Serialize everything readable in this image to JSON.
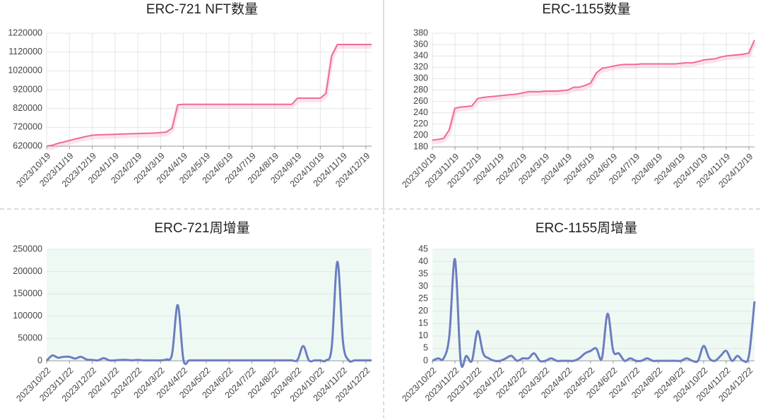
{
  "chart_data": [
    {
      "type": "line",
      "title": "ERC-721 NFT数量",
      "categories": [
        "2023/10/19",
        null,
        null,
        null,
        "2023/11/19",
        null,
        null,
        null,
        "2023/12/19",
        null,
        null,
        null,
        "2024/1/19",
        null,
        null,
        null,
        "2024/2/19",
        null,
        null,
        null,
        "2024/3/19",
        null,
        null,
        null,
        "2024/4/19",
        null,
        null,
        null,
        "2024/5/19",
        null,
        null,
        null,
        "2024/6/19",
        null,
        null,
        null,
        "2024/7/19",
        null,
        null,
        null,
        "2024/8/19",
        null,
        null,
        null,
        "2024/9/19",
        null,
        null,
        null,
        "2024/10/19",
        null,
        null,
        null,
        "2024/11/19",
        null,
        null,
        null,
        "2024/12/19",
        null
      ],
      "values": [
        620000,
        625000,
        635000,
        642000,
        650000,
        658000,
        665000,
        672000,
        678000,
        680000,
        681000,
        682000,
        683000,
        684000,
        685000,
        686000,
        687000,
        688000,
        689000,
        690000,
        692000,
        695000,
        715000,
        840000,
        842000,
        842000,
        842000,
        842000,
        842000,
        842000,
        842000,
        842000,
        842000,
        842000,
        842000,
        842000,
        842000,
        842000,
        842000,
        842000,
        842000,
        842000,
        842000,
        842000,
        875000,
        875000,
        875000,
        875000,
        875000,
        900000,
        1100000,
        1160000,
        1160000,
        1160000,
        1160000,
        1160000,
        1160000,
        1160000
      ],
      "color": "#f06a95",
      "ylim": [
        620000,
        1220000
      ],
      "yticks": [
        620000,
        720000,
        820000,
        920000,
        1020000,
        1120000,
        1220000
      ],
      "grid": true,
      "smooth": false
    },
    {
      "type": "line",
      "title": "ERC-1155数量",
      "categories": [
        "2023/10/19",
        null,
        null,
        null,
        "2023/11/19",
        null,
        null,
        null,
        "2023/12/19",
        null,
        null,
        null,
        "2024/1/19",
        null,
        null,
        null,
        "2024/2/19",
        null,
        null,
        null,
        "2024/3/19",
        null,
        null,
        null,
        "2024/4/19",
        null,
        null,
        null,
        "2024/5/19",
        null,
        null,
        null,
        "2024/6/19",
        null,
        null,
        null,
        "2024/7/19",
        null,
        null,
        null,
        "2024/8/19",
        null,
        null,
        null,
        "2024/9/19",
        null,
        null,
        null,
        "2024/10/19",
        null,
        null,
        null,
        "2024/11/19",
        null,
        null,
        null,
        "2024/12/19",
        null
      ],
      "values": [
        192,
        193,
        195,
        210,
        248,
        250,
        251,
        252,
        265,
        267,
        268,
        269,
        270,
        271,
        272,
        273,
        275,
        277,
        277,
        277,
        278,
        278,
        278,
        279,
        280,
        285,
        285,
        288,
        292,
        310,
        318,
        320,
        322,
        324,
        325,
        325,
        325,
        326,
        326,
        326,
        326,
        326,
        326,
        326,
        327,
        328,
        328,
        330,
        333,
        334,
        335,
        338,
        340,
        341,
        342,
        343,
        345,
        368
      ],
      "color": "#f06a95",
      "ylim": [
        180,
        380
      ],
      "yticks": [
        180,
        200,
        220,
        240,
        260,
        280,
        300,
        320,
        340,
        360,
        380
      ],
      "grid": true,
      "smooth": false
    },
    {
      "type": "line",
      "title": "ERC-721周增量",
      "categories": [
        "2023/10/22",
        null,
        null,
        null,
        "2023/11/22",
        null,
        null,
        null,
        "2023/12/22",
        null,
        null,
        null,
        "2024/1/22",
        null,
        null,
        null,
        "2024/2/22",
        null,
        null,
        null,
        "2024/3/22",
        null,
        null,
        null,
        "2024/4/22",
        null,
        null,
        null,
        "2024/5/22",
        null,
        null,
        null,
        "2024/6/22",
        null,
        null,
        null,
        "2024/7/22",
        null,
        null,
        null,
        "2024/8/22",
        null,
        null,
        null,
        "2024/9/22",
        null,
        null,
        null,
        "2024/10/22",
        null,
        null,
        null,
        "2024/11/22",
        null,
        null,
        null,
        "2024/12/22",
        null
      ],
      "values": [
        0,
        12000,
        7000,
        9000,
        9000,
        5000,
        9000,
        3000,
        2000,
        1000,
        6000,
        1000,
        1000,
        2000,
        2000,
        1000,
        2000,
        1000,
        1000,
        1000,
        1000,
        3000,
        15000,
        125000,
        2000,
        1000,
        1000,
        1000,
        1000,
        1000,
        1000,
        1000,
        1000,
        1000,
        1000,
        1000,
        1000,
        1000,
        1000,
        1000,
        1000,
        1000,
        1000,
        1000,
        2000,
        33000,
        1000,
        1000,
        1000,
        1000,
        30000,
        222000,
        40000,
        1000,
        1000,
        1000,
        1000,
        1000
      ],
      "color": "#6b7ec0",
      "background": "#eff9f4",
      "ylim": [
        0,
        250000
      ],
      "yticks": [
        0,
        50000,
        100000,
        150000,
        200000,
        250000
      ],
      "grid": true,
      "smooth": true
    },
    {
      "type": "line",
      "title": "ERC-1155周增量",
      "categories": [
        "2023/10/22",
        null,
        null,
        null,
        "2023/11/22",
        null,
        null,
        null,
        "2023/12/22",
        null,
        null,
        null,
        "2024/1/22",
        null,
        null,
        null,
        "2024/2/22",
        null,
        null,
        null,
        "2024/3/22",
        null,
        null,
        null,
        "2024/4/22",
        null,
        null,
        null,
        "2024/5/22",
        null,
        null,
        null,
        "2024/6/22",
        null,
        null,
        null,
        "2024/7/22",
        null,
        null,
        null,
        "2024/8/22",
        null,
        null,
        null,
        "2024/9/22",
        null,
        null,
        null,
        "2024/10/22",
        null,
        null,
        null,
        "2024/11/22",
        null,
        null,
        null,
        "2024/12/22",
        null
      ],
      "values": [
        0,
        1,
        1,
        10,
        41,
        0,
        2,
        0,
        12,
        3,
        1,
        0,
        0,
        1,
        2,
        0,
        1,
        1,
        3,
        0,
        0,
        1,
        0,
        0,
        0,
        0,
        1,
        3,
        4,
        5,
        1,
        19,
        4,
        3,
        0,
        1,
        0,
        0,
        1,
        0,
        0,
        0,
        0,
        0,
        0,
        1,
        0,
        0,
        6,
        1,
        0,
        2,
        4,
        0,
        2,
        0,
        2,
        24
      ],
      "color": "#6b7ec0",
      "background": "#eff9f4",
      "ylim": [
        0,
        45
      ],
      "yticks": [
        0,
        5,
        10,
        15,
        20,
        25,
        30,
        35,
        40,
        45
      ],
      "grid": true,
      "smooth": true
    }
  ]
}
